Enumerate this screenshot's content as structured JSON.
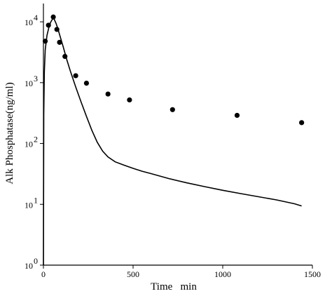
{
  "chart_data": {
    "type": "scatter",
    "xlabel": "Time   min",
    "ylabel": "Alk Phosphatase(ng/ml)",
    "xlim": [
      0,
      1500
    ],
    "ylim": [
      1,
      20000
    ],
    "yscale": "log",
    "grid": false,
    "x_ticks": [
      {
        "value": 0,
        "label": "0"
      },
      {
        "value": 500,
        "label": "500"
      },
      {
        "value": 1000,
        "label": "1000"
      },
      {
        "value": 1500,
        "label": "1500"
      }
    ],
    "y_ticks": [
      {
        "value": 1,
        "base": "10",
        "exp": "0"
      },
      {
        "value": 10,
        "base": "10",
        "exp": "1"
      },
      {
        "value": 100,
        "base": "10",
        "exp": "2"
      },
      {
        "value": 1000,
        "base": "10",
        "exp": "3"
      },
      {
        "value": 10000,
        "base": "10",
        "exp": "4"
      }
    ],
    "series": [
      {
        "kind": "points",
        "x": [
          10,
          28,
          55,
          75,
          90,
          120,
          180,
          240,
          360,
          480,
          720,
          1080,
          1440
        ],
        "y": [
          4800,
          8800,
          12000,
          7500,
          4600,
          2700,
          1300,
          980,
          650,
          520,
          360,
          290,
          220
        ]
      },
      {
        "kind": "line",
        "x": [
          0,
          2,
          5,
          10,
          20,
          30,
          40,
          50,
          55,
          60,
          70,
          80,
          90,
          110,
          130,
          150,
          180,
          210,
          240,
          270,
          300,
          330,
          360,
          400,
          450,
          500,
          550,
          600,
          700,
          800,
          900,
          1000,
          1100,
          1200,
          1300,
          1400,
          1440
        ],
        "y": [
          1,
          300,
          1500,
          3500,
          6000,
          8000,
          9800,
          11000,
          11300,
          11000,
          9500,
          7800,
          6200,
          3900,
          2400,
          1550,
          850,
          480,
          280,
          165,
          105,
          75,
          60,
          50,
          44,
          39,
          35,
          32,
          26.5,
          22.5,
          19.5,
          17,
          15,
          13.3,
          11.8,
          10.2,
          9.4
        ]
      }
    ]
  }
}
